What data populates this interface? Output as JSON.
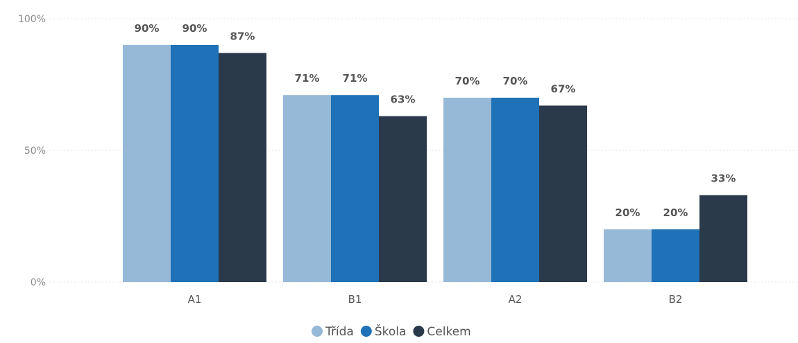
{
  "chart_data": {
    "type": "bar",
    "categories": [
      "A1",
      "B1",
      "A2",
      "B2"
    ],
    "series": [
      {
        "name": "Třída",
        "values": [
          90,
          71,
          70,
          20
        ],
        "color": "#96b9d8"
      },
      {
        "name": "Škola",
        "values": [
          90,
          71,
          70,
          20
        ],
        "color": "#1f71b8"
      },
      {
        "name": "Celkem",
        "values": [
          87,
          63,
          67,
          33
        ],
        "color": "#2b3a4a"
      }
    ],
    "ylim": [
      0,
      100
    ],
    "yticks": [
      {
        "value": 0,
        "label": "0%"
      },
      {
        "value": 50,
        "label": "50%"
      },
      {
        "value": 100,
        "label": "100%"
      }
    ],
    "value_suffix": "%",
    "grid": true,
    "legend_position": "bottom-center",
    "title": "",
    "xlabel": "",
    "ylabel": ""
  }
}
